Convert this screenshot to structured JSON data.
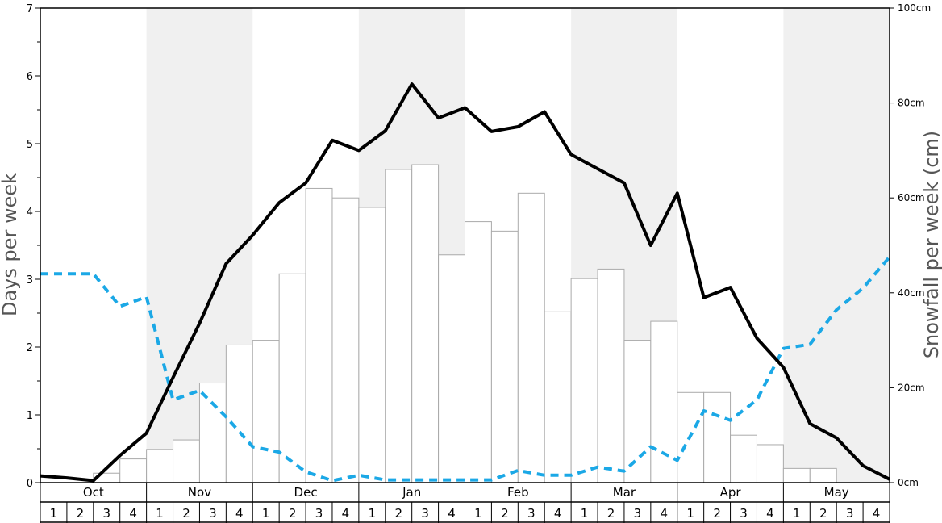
{
  "chart_data": {
    "type": "bar+line",
    "ylabel_left": "Days per week",
    "ylabel_right": "Snowfall per week (cm)",
    "y_left_range": [
      0,
      7
    ],
    "y_left_ticks": [
      "0",
      "1",
      "2",
      "3",
      "4",
      "5",
      "6",
      "7"
    ],
    "y_right_range": [
      0,
      100
    ],
    "y_right_ticks": [
      "0cm",
      "20cm",
      "40cm",
      "60cm",
      "80cm",
      "100cm"
    ],
    "months": [
      "Oct",
      "Nov",
      "Dec",
      "Jan",
      "Feb",
      "Mar",
      "Apr",
      "May"
    ],
    "weeks": [
      "1",
      "2",
      "3",
      "4"
    ],
    "shaded_months": [
      "Nov",
      "Jan",
      "Mar",
      "May"
    ],
    "colors": {
      "shade": "#f0f0f0",
      "bars": "#ffffff",
      "bar_stroke": "#aaaaaa",
      "line_snow_days": "#000000",
      "line_dashed": "#1ba8e6"
    },
    "snowfall_cm_bars": [
      0,
      0,
      2,
      5,
      7,
      9,
      21,
      29,
      30,
      44,
      62,
      60,
      58,
      66,
      67,
      48,
      55,
      53,
      61,
      36,
      43,
      45,
      30,
      34,
      19,
      19,
      10,
      8,
      3,
      3,
      0,
      0
    ],
    "series": [
      {
        "values": [
          0.1,
          0.07,
          0.03,
          0.4,
          0.73,
          1.55,
          2.35,
          3.23,
          3.65,
          4.13,
          4.42,
          5.05,
          4.9,
          5.19,
          5.88,
          5.38,
          5.53,
          5.18,
          5.25,
          5.47,
          4.84,
          4.63,
          4.42,
          3.5,
          4.27,
          2.73,
          2.88,
          2.13,
          1.7,
          0.87,
          0.66,
          0.25,
          0.05
        ]
      },
      {
        "values": [
          3.08,
          3.08,
          3.08,
          2.6,
          2.74,
          1.22,
          1.36,
          0.97,
          0.53,
          0.45,
          0.16,
          0.03,
          0.11,
          0.04,
          0.04,
          0.04,
          0.04,
          0.04,
          0.18,
          0.11,
          0.11,
          0.23,
          0.17,
          0.53,
          0.33,
          1.06,
          0.92,
          1.22,
          1.98,
          2.04,
          2.55,
          2.87,
          3.33
        ]
      }
    ]
  }
}
